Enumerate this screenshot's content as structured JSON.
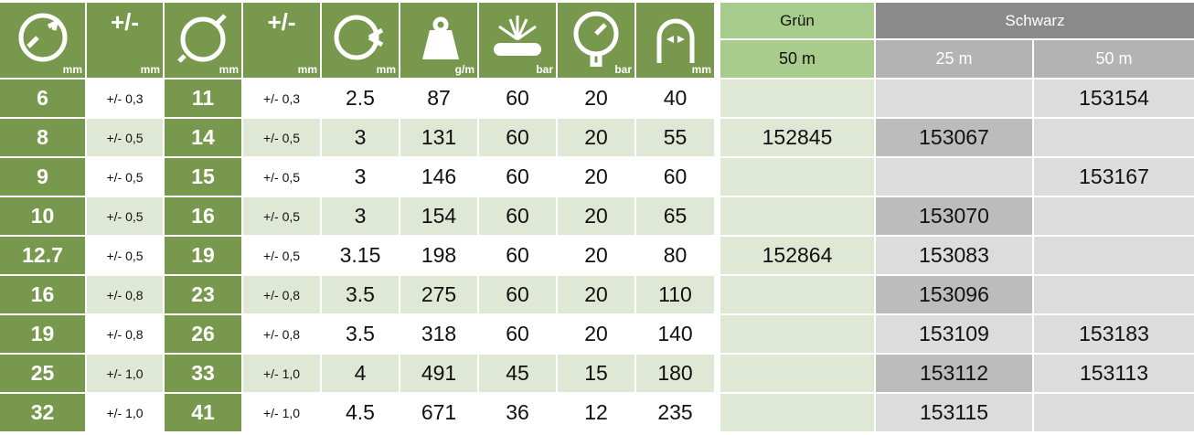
{
  "header": {
    "columns": [
      {
        "unit": "mm"
      },
      {
        "symbol": "+/-",
        "unit": "mm"
      },
      {
        "unit": "mm"
      },
      {
        "symbol": "+/-",
        "unit": "mm"
      },
      {
        "unit": "mm"
      },
      {
        "unit": "g/m"
      },
      {
        "unit": "bar"
      },
      {
        "unit": "bar"
      },
      {
        "unit": "mm"
      }
    ],
    "groups": [
      {
        "label": "Grün",
        "subs": [
          "50 m"
        ]
      },
      {
        "label": "Schwarz",
        "subs": [
          "25 m",
          "50 m"
        ]
      }
    ]
  },
  "rows": [
    [
      6,
      "+/- 0,3",
      11,
      "+/- 0,3",
      2.5,
      87,
      60,
      20,
      40,
      null,
      null,
      153154
    ],
    [
      8,
      "+/- 0,5",
      14,
      "+/- 0,5",
      3,
      131,
      60,
      20,
      55,
      152845,
      153067,
      null
    ],
    [
      9,
      "+/- 0,5",
      15,
      "+/- 0,5",
      3,
      146,
      60,
      20,
      60,
      null,
      null,
      153167
    ],
    [
      10,
      "+/- 0,5",
      16,
      "+/- 0,5",
      3,
      154,
      60,
      20,
      65,
      null,
      153070,
      null
    ],
    [
      12.7,
      "+/- 0,5",
      19,
      "+/- 0,5",
      3.15,
      198,
      60,
      20,
      80,
      152864,
      153083,
      null
    ],
    [
      16,
      "+/- 0,8",
      23,
      "+/- 0,8",
      3.5,
      275,
      60,
      20,
      110,
      null,
      153096,
      null
    ],
    [
      19,
      "+/- 0,8",
      26,
      "+/- 0,8",
      3.5,
      318,
      60,
      20,
      140,
      null,
      153109,
      153183
    ],
    [
      25,
      "+/- 1,0",
      33,
      "+/- 1,0",
      4,
      491,
      45,
      15,
      180,
      null,
      153112,
      153113
    ],
    [
      32,
      "+/- 1,0",
      41,
      "+/- 1,0",
      4.5,
      671,
      36,
      12,
      235,
      null,
      153115,
      null
    ]
  ]
}
